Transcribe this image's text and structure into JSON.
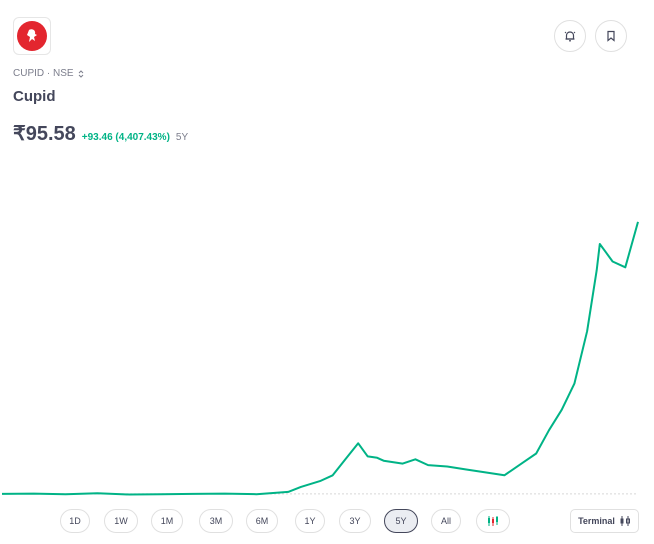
{
  "stock": {
    "symbol_line": "CUPID · NSE",
    "name": "Cupid",
    "price": "₹95.58",
    "change": "+93.46 (4,407.43%)",
    "period": "5Y"
  },
  "icons": {
    "logo": "cupid-logo-icon",
    "alert": "bell-alert-icon",
    "bookmark": "bookmark-icon",
    "switch": "chevron-up-down-icon",
    "candles": "candlestick-icon",
    "terminal": "terminal-candle-icon"
  },
  "colors": {
    "line": "#00b386",
    "logo_red": "#e3262f",
    "text": "#44475b",
    "muted": "#7c7e8c"
  },
  "ranges": [
    {
      "label": "1D",
      "active": false
    },
    {
      "label": "1W",
      "active": false
    },
    {
      "label": "1M",
      "active": false
    },
    {
      "label": "3M",
      "active": false
    },
    {
      "label": "6M",
      "active": false
    },
    {
      "label": "1Y",
      "active": false
    },
    {
      "label": "3Y",
      "active": false
    },
    {
      "label": "5Y",
      "active": true
    },
    {
      "label": "All",
      "active": false
    }
  ],
  "terminal_label": "Terminal",
  "chart_data": {
    "type": "line",
    "x": [
      0,
      0.05,
      0.1,
      0.15,
      0.2,
      0.25,
      0.3,
      0.35,
      0.4,
      0.45,
      0.47,
      0.5,
      0.52,
      0.54,
      0.56,
      0.575,
      0.59,
      0.6,
      0.63,
      0.65,
      0.67,
      0.7,
      0.73,
      0.76,
      0.79,
      0.8,
      0.82,
      0.84,
      0.86,
      0.88,
      0.9,
      0.92,
      0.935,
      0.94,
      0.95,
      0.96,
      0.98,
      1.0
    ],
    "values": [
      2.1,
      2.2,
      2.0,
      2.3,
      1.9,
      2.0,
      2.1,
      2.2,
      2.0,
      2.8,
      4.5,
      6.5,
      8.5,
      14.0,
      19.5,
      15.0,
      14.5,
      13.5,
      12.5,
      14.0,
      12.0,
      11.5,
      10.5,
      9.5,
      8.5,
      10.0,
      13.0,
      16.0,
      24.0,
      31.0,
      40.0,
      58.0,
      79.0,
      88.0,
      85.0,
      82.0,
      80.0,
      95.58
    ],
    "ylim": [
      0,
      110
    ],
    "grid": false,
    "baseline": 2.12
  }
}
